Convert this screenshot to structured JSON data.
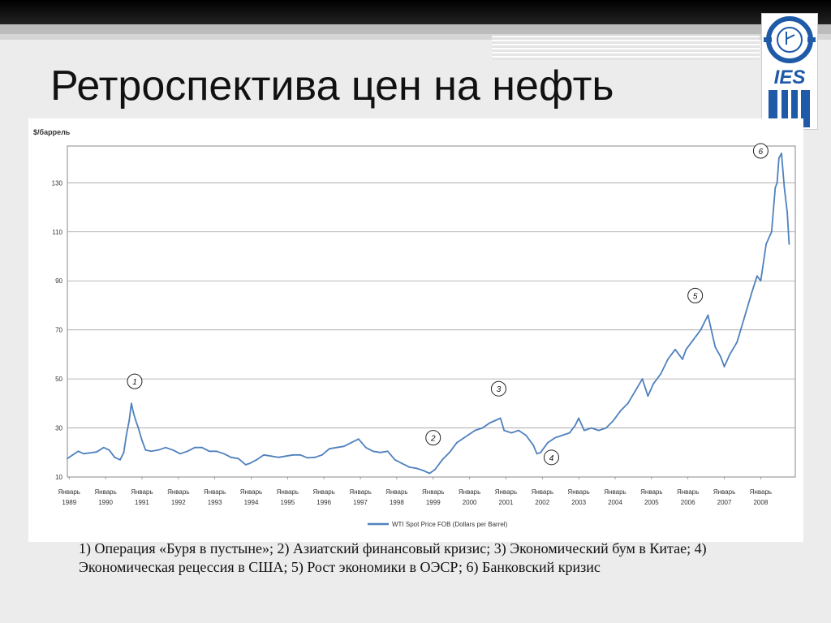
{
  "slide": {
    "title": "Ретроспектива цен на нефть",
    "caption": "1)  Операция «Буря в пустыне»; 2) Азиатский финансовый кризис; 3) Экономический бум в Китае;  4) Экономическая рецессия в США;  5) Рост экономики в ОЭСР;  6) Банковский кризис"
  },
  "logo": {
    "text": "IES",
    "accent": "#1e5aa8"
  },
  "chart_data": {
    "type": "line",
    "ylabel": "$/баррель",
    "ylim": [
      10,
      145
    ],
    "yticks": [
      10,
      30,
      50,
      70,
      90,
      110,
      130
    ],
    "xlim": [
      1989.0,
      2009.0
    ],
    "xticks": [
      {
        "year": 1989,
        "month": "Январь",
        "label": "1989"
      },
      {
        "year": 1990,
        "month": "Январь",
        "label": "1990"
      },
      {
        "year": 1991,
        "month": "Январь",
        "label": "1991"
      },
      {
        "year": 1992,
        "month": "Январь",
        "label": "1992"
      },
      {
        "year": 1993,
        "month": "Январь",
        "label": "1993"
      },
      {
        "year": 1994,
        "month": "Январь",
        "label": "1994"
      },
      {
        "year": 1995,
        "month": "Январь",
        "label": "1995"
      },
      {
        "year": 1996,
        "month": "Январь",
        "label": "1996"
      },
      {
        "year": 1997,
        "month": "Январь",
        "label": "1997"
      },
      {
        "year": 1998,
        "month": "Январь",
        "label": "1998"
      },
      {
        "year": 1999,
        "month": "Январь",
        "label": "1999"
      },
      {
        "year": 2000,
        "month": "Январь",
        "label": "2000"
      },
      {
        "year": 2001,
        "month": "Январь",
        "label": "2001"
      },
      {
        "year": 2002,
        "month": "Январь",
        "label": "2002"
      },
      {
        "year": 2003,
        "month": "Январь",
        "label": "2003"
      },
      {
        "year": 2004,
        "month": "Январь",
        "label": "2004"
      },
      {
        "year": 2005,
        "month": "Январь",
        "label": "2005"
      },
      {
        "year": 2006,
        "month": "Январь",
        "label": "2006"
      },
      {
        "year": 2007,
        "month": "Январь",
        "label": "2007"
      },
      {
        "year": 2008,
        "month": "Январь",
        "label": "2008"
      }
    ],
    "grid": true,
    "legend": "bottom",
    "color": "#4f81bd",
    "series": [
      {
        "name": "WTI Spot Price FOB (Dollars per Barrel)",
        "x": [
          1989.0,
          1989.15,
          1989.3,
          1989.45,
          1989.6,
          1989.8,
          1990.0,
          1990.15,
          1990.3,
          1990.45,
          1990.55,
          1990.62,
          1990.7,
          1990.76,
          1990.82,
          1990.88,
          1990.95,
          1991.05,
          1991.15,
          1991.3,
          1991.5,
          1991.7,
          1991.9,
          1992.1,
          1992.3,
          1992.5,
          1992.7,
          1992.9,
          1993.1,
          1993.3,
          1993.5,
          1993.7,
          1993.9,
          1994.0,
          1994.2,
          1994.4,
          1994.6,
          1994.8,
          1995.0,
          1995.2,
          1995.4,
          1995.6,
          1995.8,
          1996.0,
          1996.2,
          1996.4,
          1996.6,
          1996.8,
          1997.0,
          1997.2,
          1997.4,
          1997.6,
          1997.8,
          1998.0,
          1998.2,
          1998.4,
          1998.6,
          1998.8,
          1998.95,
          1999.1,
          1999.3,
          1999.5,
          1999.7,
          1999.9,
          2000.0,
          2000.2,
          2000.4,
          2000.6,
          2000.75,
          2000.9,
          2001.0,
          2001.2,
          2001.4,
          2001.6,
          2001.8,
          2001.9,
          2002.0,
          2002.2,
          2002.4,
          2002.6,
          2002.8,
          2002.95,
          2003.05,
          2003.2,
          2003.4,
          2003.6,
          2003.8,
          2004.0,
          2004.2,
          2004.4,
          2004.6,
          2004.8,
          2004.95,
          2005.1,
          2005.3,
          2005.5,
          2005.7,
          2005.9,
          2006.0,
          2006.2,
          2006.4,
          2006.6,
          2006.8,
          2006.95,
          2007.05,
          2007.2,
          2007.4,
          2007.6,
          2007.8,
          2007.95,
          2008.05,
          2008.2,
          2008.35,
          2008.45,
          2008.5,
          2008.55,
          2008.62,
          2008.7,
          2008.78,
          2008.83
        ],
        "values": [
          17.5,
          19.0,
          20.5,
          19.5,
          19.8,
          20.2,
          22.0,
          21.0,
          18.0,
          17.0,
          20.0,
          27.0,
          33.0,
          40.0,
          36.0,
          33.0,
          30.0,
          25.0,
          21.0,
          20.5,
          21.0,
          22.0,
          21.0,
          19.5,
          20.5,
          22.0,
          22.0,
          20.5,
          20.5,
          19.5,
          18.0,
          17.5,
          15.0,
          15.5,
          17.0,
          19.0,
          18.5,
          18.0,
          18.5,
          19.0,
          19.0,
          17.8,
          18.0,
          19.0,
          21.5,
          22.0,
          22.5,
          24.0,
          25.5,
          22.0,
          20.5,
          20.0,
          20.5,
          17.0,
          15.5,
          14.0,
          13.5,
          12.5,
          11.5,
          13.0,
          17.0,
          20.0,
          24.0,
          26.0,
          27.0,
          29.0,
          30.0,
          32.0,
          33.0,
          34.0,
          29.0,
          28.0,
          29.0,
          27.0,
          23.0,
          19.5,
          20.0,
          24.0,
          26.0,
          27.0,
          28.0,
          31.0,
          34.0,
          29.0,
          30.0,
          29.0,
          30.0,
          33.0,
          37.0,
          40.0,
          45.0,
          50.0,
          43.0,
          48.0,
          52.0,
          58.0,
          62.0,
          58.0,
          62.0,
          66.0,
          70.0,
          76.0,
          63.0,
          59.0,
          55.0,
          60.0,
          65.0,
          75.0,
          85.0,
          92.0,
          90.0,
          105.0,
          110.0,
          128.0,
          130.0,
          140.0,
          142.0,
          128.0,
          118.0,
          105.0
        ]
      }
    ],
    "annotations": [
      {
        "label": "1",
        "x": 1990.85,
        "y": 49
      },
      {
        "label": "2",
        "x": 1999.05,
        "y": 26
      },
      {
        "label": "3",
        "x": 2000.85,
        "y": 46
      },
      {
        "label": "4",
        "x": 2002.3,
        "y": 18
      },
      {
        "label": "5",
        "x": 2006.25,
        "y": 84
      },
      {
        "label": "6",
        "x": 2008.05,
        "y": 143
      }
    ]
  }
}
